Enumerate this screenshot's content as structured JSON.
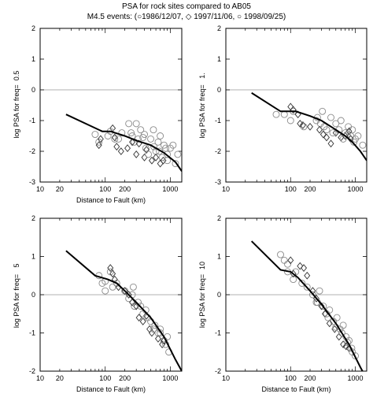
{
  "header": {
    "title": "PSA for rock sites compared to AB05",
    "subtitle": "M4.5 events: (○1986/12/07, ◇ 1997/11/06, ○ 1998/09/25)"
  },
  "chart_data": [
    {
      "type": "scatter",
      "freq_label": "0.5",
      "xlabel": "Distance to Fault (km)",
      "ylabel": "log PSA for freq=",
      "x_scale": "log",
      "xlim": [
        10,
        1500
      ],
      "ylim": [
        -3,
        2
      ],
      "x_ticks": [
        "10",
        "20",
        "100",
        "200",
        "1000"
      ],
      "y_ticks": [
        "-3",
        "-2",
        "-1",
        "0",
        "1",
        "2"
      ],
      "model_curve": {
        "x": [
          25,
          90,
          120,
          200,
          300,
          500,
          800,
          1200,
          1500
        ],
        "y": [
          -0.8,
          -1.35,
          -1.35,
          -1.5,
          -1.65,
          -1.8,
          -2.05,
          -2.35,
          -2.65
        ]
      },
      "series": [
        {
          "name": "1986/12/07",
          "marker": "circle",
          "points": [
            [
              70,
              -1.45
            ],
            [
              80,
              -1.7
            ],
            [
              110,
              -1.5
            ],
            [
              140,
              -1.6
            ],
            [
              180,
              -1.4
            ],
            [
              230,
              -1.1
            ],
            [
              250,
              -1.4
            ],
            [
              280,
              -1.7
            ],
            [
              300,
              -1.1
            ],
            [
              350,
              -1.3
            ],
            [
              380,
              -1.55
            ],
            [
              420,
              -1.9
            ],
            [
              500,
              -1.6
            ],
            [
              550,
              -1.3
            ],
            [
              600,
              -2.0
            ],
            [
              650,
              -1.7
            ],
            [
              700,
              -1.5
            ],
            [
              750,
              -2.2
            ],
            [
              800,
              -1.8
            ],
            [
              850,
              -1.9
            ],
            [
              900,
              -2.1
            ],
            [
              1000,
              -1.9
            ],
            [
              1100,
              -1.8
            ],
            [
              1300,
              -2.1
            ]
          ]
        },
        {
          "name": "1997/11/06",
          "marker": "diamond",
          "points": [
            [
              80,
              -1.8
            ],
            [
              85,
              -1.6
            ],
            [
              130,
              -1.25
            ],
            [
              140,
              -1.55
            ],
            [
              150,
              -1.85
            ],
            [
              175,
              -2.0
            ],
            [
              220,
              -1.9
            ],
            [
              260,
              -1.7
            ],
            [
              300,
              -2.1
            ],
            [
              330,
              -1.75
            ],
            [
              400,
              -2.2
            ],
            [
              430,
              -1.95
            ],
            [
              520,
              -2.3
            ],
            [
              600,
              -2.2
            ],
            [
              700,
              -2.4
            ],
            [
              780,
              -2.3
            ]
          ]
        },
        {
          "name": "1998/09/25",
          "marker": "circle",
          "points": [
            [
              120,
              -1.35
            ],
            [
              160,
              -1.6
            ],
            [
              260,
              -1.5
            ],
            [
              320,
              -1.6
            ],
            [
              400,
              -1.45
            ],
            [
              460,
              -2.1
            ],
            [
              560,
              -1.85
            ],
            [
              680,
              -2.0
            ],
            [
              900,
              -2.3
            ],
            [
              1200,
              -2.4
            ]
          ]
        }
      ]
    },
    {
      "type": "scatter",
      "freq_label": "1.",
      "xlabel": "",
      "ylabel": "log PSA for freq=",
      "x_scale": "log",
      "xlim": [
        10,
        1500
      ],
      "ylim": [
        -3,
        2
      ],
      "x_ticks": [
        "10",
        "100",
        "200",
        "1000"
      ],
      "y_ticks": [
        "-3",
        "-2",
        "-1",
        "0",
        "1",
        "2"
      ],
      "model_curve": {
        "x": [
          25,
          70,
          120,
          200,
          300,
          500,
          700,
          900,
          1200,
          1500
        ],
        "y": [
          -0.1,
          -0.7,
          -0.7,
          -0.85,
          -1.0,
          -1.3,
          -1.5,
          -1.7,
          -2.0,
          -2.3
        ]
      },
      "series": [
        {
          "name": "1986/12/07",
          "marker": "circle",
          "points": [
            [
              80,
              -0.8
            ],
            [
              100,
              -1.0
            ],
            [
              110,
              -0.7
            ],
            [
              160,
              -1.2
            ],
            [
              260,
              -0.9
            ],
            [
              290,
              -1.1
            ],
            [
              310,
              -0.7
            ],
            [
              360,
              -1.3
            ],
            [
              420,
              -0.9
            ],
            [
              500,
              -1.1
            ],
            [
              560,
              -1.3
            ],
            [
              600,
              -1.0
            ],
            [
              700,
              -1.4
            ],
            [
              780,
              -1.2
            ],
            [
              850,
              -1.5
            ],
            [
              900,
              -1.3
            ],
            [
              1000,
              -1.6
            ],
            [
              1100,
              -1.5
            ],
            [
              1300,
              -1.8
            ]
          ]
        },
        {
          "name": "1997/11/06",
          "marker": "diamond",
          "points": [
            [
              100,
              -0.55
            ],
            [
              110,
              -0.65
            ],
            [
              130,
              -0.8
            ],
            [
              140,
              -1.1
            ],
            [
              155,
              -1.15
            ],
            [
              200,
              -1.2
            ],
            [
              280,
              -1.3
            ],
            [
              320,
              -1.45
            ],
            [
              360,
              -1.55
            ],
            [
              420,
              -1.75
            ],
            [
              500,
              -1.4
            ],
            [
              600,
              -1.55
            ],
            [
              700,
              -1.5
            ],
            [
              800,
              -1.35
            ],
            [
              850,
              -1.6
            ]
          ]
        },
        {
          "name": "1998/09/25",
          "marker": "circle",
          "points": [
            [
              60,
              -0.8
            ],
            [
              250,
              -1.0
            ],
            [
              330,
              -1.2
            ],
            [
              450,
              -1.4
            ],
            [
              650,
              -1.6
            ],
            [
              750,
              -1.45
            ],
            [
              950,
              -1.7
            ]
          ]
        }
      ]
    },
    {
      "type": "scatter",
      "freq_label": "5",
      "xlabel": "Distance to Fault (km)",
      "ylabel": "log PSA for freq=",
      "x_scale": "log",
      "xlim": [
        10,
        1500
      ],
      "ylim": [
        -2,
        2
      ],
      "x_ticks": [
        "10",
        "20",
        "100",
        "200",
        "1000"
      ],
      "y_ticks": [
        "-2",
        "-1",
        "0",
        "1",
        "2"
      ],
      "model_curve": {
        "x": [
          25,
          70,
          110,
          150,
          200,
          300,
          500,
          800,
          1200,
          1500
        ],
        "y": [
          1.15,
          0.5,
          0.4,
          0.3,
          0.1,
          -0.2,
          -0.6,
          -1.1,
          -1.7,
          -2.0
        ]
      },
      "series": [
        {
          "name": "1986/12/07",
          "marker": "circle",
          "points": [
            [
              80,
              0.5
            ],
            [
              90,
              0.3
            ],
            [
              100,
              0.35
            ],
            [
              120,
              0.6
            ],
            [
              130,
              0.2
            ],
            [
              150,
              0.3
            ],
            [
              200,
              0.1
            ],
            [
              230,
              -0.1
            ],
            [
              260,
              0.0
            ],
            [
              280,
              -0.3
            ],
            [
              320,
              -0.2
            ],
            [
              380,
              -0.5
            ],
            [
              420,
              -0.4
            ],
            [
              500,
              -0.7
            ],
            [
              580,
              -0.8
            ],
            [
              650,
              -1.0
            ],
            [
              700,
              -0.9
            ],
            [
              800,
              -1.2
            ],
            [
              900,
              -1.1
            ]
          ]
        },
        {
          "name": "1997/11/06",
          "marker": "diamond",
          "points": [
            [
              120,
              0.7
            ],
            [
              130,
              0.55
            ],
            [
              140,
              0.4
            ],
            [
              160,
              0.2
            ],
            [
              200,
              0.1
            ],
            [
              230,
              0.0
            ],
            [
              260,
              -0.2
            ],
            [
              300,
              -0.3
            ],
            [
              330,
              -0.6
            ],
            [
              380,
              -0.7
            ],
            [
              430,
              -0.55
            ],
            [
              480,
              -0.9
            ],
            [
              520,
              -1.0
            ],
            [
              650,
              -1.15
            ],
            [
              750,
              -1.3
            ],
            [
              800,
              -1.2
            ]
          ]
        },
        {
          "name": "1998/09/25",
          "marker": "circle",
          "points": [
            [
              100,
              0.1
            ],
            [
              270,
              0.2
            ],
            [
              350,
              -0.3
            ],
            [
              450,
              -0.6
            ],
            [
              550,
              -0.9
            ],
            [
              700,
              -1.0
            ],
            [
              850,
              -1.3
            ],
            [
              950,
              -1.5
            ]
          ]
        }
      ]
    },
    {
      "type": "scatter",
      "freq_label": "10",
      "xlabel": "Distance to Fault (km)",
      "ylabel": "log PSA for freq=",
      "x_scale": "log",
      "xlim": [
        10,
        1500
      ],
      "ylim": [
        -2,
        2
      ],
      "x_ticks": [
        "10",
        "100",
        "200",
        "1000"
      ],
      "y_ticks": [
        "-2",
        "-1",
        "0",
        "1",
        "2"
      ],
      "model_curve": {
        "x": [
          25,
          70,
          100,
          130,
          200,
          300,
          500,
          800,
          1200,
          1500
        ],
        "y": [
          1.4,
          0.65,
          0.6,
          0.45,
          0.1,
          -0.25,
          -0.75,
          -1.3,
          -1.9,
          -2.2
        ]
      },
      "series": [
        {
          "name": "1986/12/07",
          "marker": "circle",
          "points": [
            [
              70,
              1.05
            ],
            [
              80,
              0.9
            ],
            [
              90,
              0.8
            ],
            [
              110,
              0.4
            ],
            [
              120,
              0.6
            ],
            [
              150,
              0.3
            ],
            [
              180,
              0.2
            ],
            [
              220,
              0.0
            ],
            [
              250,
              -0.2
            ],
            [
              280,
              0.1
            ],
            [
              320,
              -0.3
            ],
            [
              360,
              -0.5
            ],
            [
              400,
              -0.4
            ],
            [
              460,
              -0.7
            ],
            [
              520,
              -0.6
            ],
            [
              580,
              -0.9
            ],
            [
              650,
              -0.8
            ],
            [
              720,
              -1.1
            ],
            [
              800,
              -1.2
            ],
            [
              880,
              -1.4
            ]
          ]
        },
        {
          "name": "1997/11/06",
          "marker": "diamond",
          "points": [
            [
              100,
              0.9
            ],
            [
              110,
              0.55
            ],
            [
              140,
              0.75
            ],
            [
              160,
              0.7
            ],
            [
              180,
              0.5
            ],
            [
              220,
              0.1
            ],
            [
              250,
              -0.1
            ],
            [
              300,
              -0.3
            ],
            [
              340,
              -0.5
            ],
            [
              400,
              -0.75
            ],
            [
              480,
              -0.9
            ],
            [
              560,
              -1.1
            ],
            [
              650,
              -1.3
            ],
            [
              720,
              -1.35
            ],
            [
              800,
              -1.4
            ]
          ]
        },
        {
          "name": "1998/09/25",
          "marker": "circle",
          "points": [
            [
              90,
              0.6
            ],
            [
              260,
              -0.2
            ],
            [
              380,
              -0.6
            ],
            [
              500,
              -0.85
            ],
            [
              620,
              -1.0
            ],
            [
              760,
              -1.25
            ],
            [
              900,
              -1.5
            ],
            [
              1000,
              -1.6
            ]
          ]
        }
      ]
    }
  ]
}
